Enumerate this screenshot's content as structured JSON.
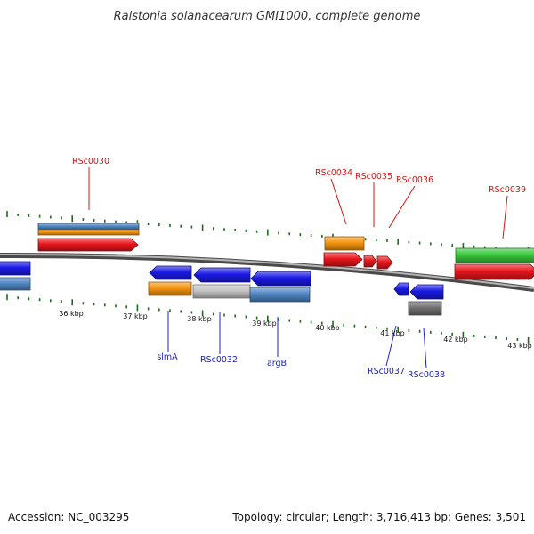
{
  "title": "Ralstonia solanacearum GMI1000, complete genome",
  "footer": {
    "accession": "Accession: NC_003295",
    "summary": "Topology: circular; Length: 3,716,413 bp; Genes: 3,501"
  },
  "axis": {
    "unit": "kbp",
    "tick_labels": [
      "36 kbp",
      "37 kbp",
      "38 kbp",
      "39 kbp",
      "40 kbp",
      "41 kbp",
      "42 kbp",
      "43 kbp"
    ]
  },
  "upper_labels": [
    "RSc0030",
    "RSc0034",
    "RSc0035",
    "RSc0036",
    "RSc0039"
  ],
  "lower_labels": [
    "slmA",
    "RSc0032",
    "argB",
    "RSc0037",
    "RSc0038"
  ],
  "colors": {
    "red": "#e8151b",
    "blue": "#1a1ae6",
    "orange": "#f5950f",
    "steelblue": "#4f87c4",
    "green": "#39c93c",
    "gray": "#707070",
    "lightgray": "#c4c4c4",
    "tick_green": "#1a6e1a",
    "label_red": "#d41515",
    "label_blue": "#1c24b8"
  }
}
